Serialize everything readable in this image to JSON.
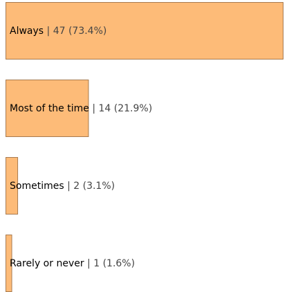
{
  "colors": {
    "bar_fill": "#FDBB78",
    "bar_stroke": "#A87A4E"
  },
  "chart_data": {
    "type": "bar",
    "orientation": "horizontal",
    "categories": [
      "Always",
      "Most of the time",
      "Sometimes",
      "Rarely or never"
    ],
    "values": [
      47,
      14,
      2,
      1
    ],
    "percent_labels": [
      "73.4%",
      "21.9%",
      "3.1%",
      "1.6%"
    ],
    "value_labels": [
      "| 47 (73.4%)",
      "| 14 (21.9%)",
      "| 2 (3.1%)",
      "| 1 (1.6%)"
    ],
    "xlim": [
      0,
      47
    ],
    "grid": false,
    "legend": "none"
  }
}
